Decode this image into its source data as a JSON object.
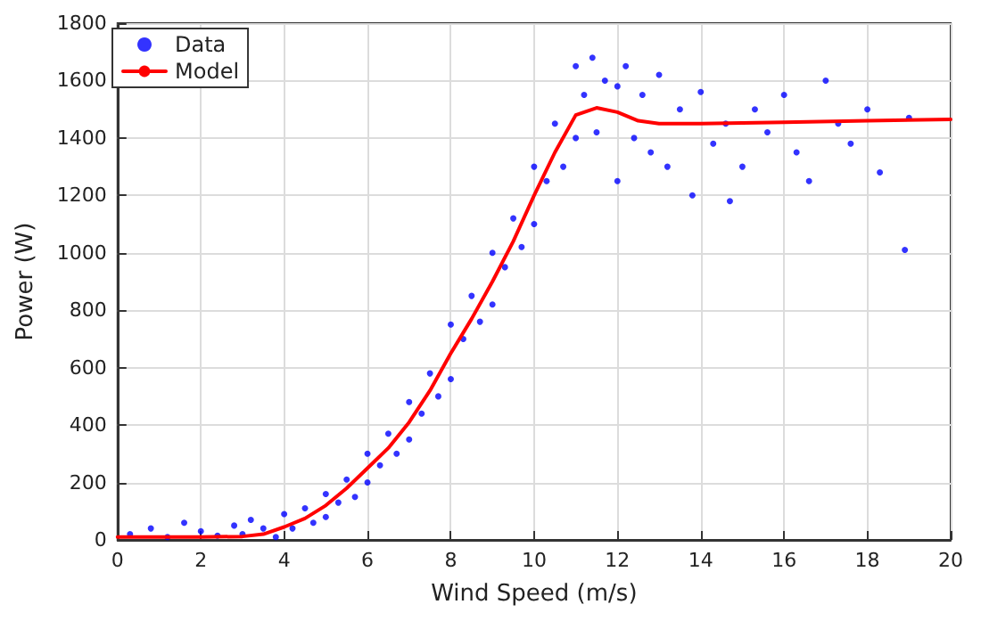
{
  "chart_data": {
    "type": "scatter",
    "xlabel": "Wind Speed (m/s)",
    "ylabel": "Power (W)",
    "xlim": [
      0,
      20
    ],
    "ylim": [
      0,
      1800
    ],
    "xticks": [
      0,
      2,
      4,
      6,
      8,
      10,
      12,
      14,
      16,
      18,
      20
    ],
    "yticks": [
      0,
      200,
      400,
      600,
      800,
      1000,
      1200,
      1400,
      1600,
      1800
    ],
    "grid": true,
    "legend": "top left",
    "series": [
      {
        "name": "Data",
        "color": "#0000ff",
        "marker": "circle",
        "x": [
          0.3,
          0.8,
          1.2,
          1.6,
          2.0,
          2.4,
          2.8,
          3.0,
          3.2,
          3.5,
          3.8,
          4.0,
          4.2,
          4.5,
          4.7,
          5.0,
          5.0,
          5.3,
          5.5,
          5.7,
          6.0,
          6.0,
          6.3,
          6.5,
          6.7,
          7.0,
          7.0,
          7.3,
          7.5,
          7.7,
          8.0,
          8.0,
          8.3,
          8.5,
          8.7,
          9.0,
          9.0,
          9.3,
          9.5,
          9.7,
          10.0,
          10.0,
          10.3,
          10.5,
          10.7,
          11.0,
          11.0,
          11.2,
          11.4,
          11.5,
          11.7,
          12.0,
          12.0,
          12.2,
          12.4,
          12.6,
          12.8,
          13.0,
          13.2,
          13.5,
          13.8,
          14.0,
          14.3,
          14.6,
          15.0,
          15.3,
          15.6,
          16.0,
          16.3,
          16.6,
          17.0,
          17.3,
          17.6,
          18.0,
          18.3,
          18.9,
          19.0,
          14.7
        ],
        "values": [
          20,
          40,
          10,
          60,
          30,
          15,
          50,
          20,
          70,
          40,
          10,
          90,
          40,
          110,
          60,
          160,
          80,
          130,
          210,
          150,
          300,
          200,
          260,
          370,
          300,
          480,
          350,
          440,
          580,
          500,
          750,
          560,
          700,
          850,
          760,
          1000,
          820,
          950,
          1120,
          1020,
          1300,
          1100,
          1250,
          1450,
          1300,
          1650,
          1400,
          1550,
          1680,
          1420,
          1600,
          1580,
          1250,
          1650,
          1400,
          1550,
          1350,
          1620,
          1300,
          1500,
          1200,
          1560,
          1380,
          1450,
          1300,
          1500,
          1420,
          1550,
          1350,
          1250,
          1600,
          1450,
          1380,
          1500,
          1280,
          1010,
          1470,
          1180
        ]
      },
      {
        "name": "Model",
        "type": "line",
        "color": "#ff0000",
        "marker": "none",
        "line_style": "solid",
        "x": [
          0,
          1,
          2,
          3,
          3.5,
          4,
          4.5,
          5,
          5.5,
          6,
          6.5,
          7,
          7.5,
          8,
          8.5,
          9,
          9.5,
          10,
          10.5,
          11,
          11.5,
          12,
          12.5,
          13,
          14,
          16,
          18,
          20
        ],
        "values": [
          10,
          10,
          10,
          12,
          20,
          45,
          75,
          120,
          180,
          250,
          320,
          410,
          520,
          650,
          770,
          900,
          1040,
          1200,
          1350,
          1480,
          1505,
          1490,
          1460,
          1450,
          1450,
          1455,
          1460,
          1465
        ]
      }
    ]
  }
}
